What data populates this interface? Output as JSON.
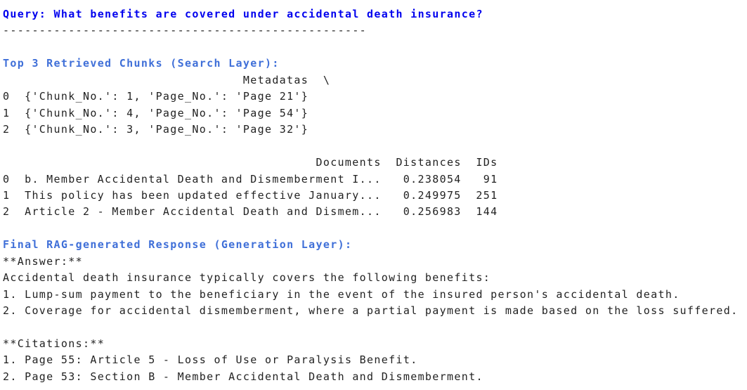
{
  "query": "Query: What benefits are covered under accidental death insurance?",
  "separator": "--------------------------------------------------",
  "retrieved": {
    "title": "Top 3 Retrieved Chunks (Search Layer):",
    "table1": {
      "header": "Metadatas  \\",
      "rows": [
        [
          "0",
          "{'Chunk_No.': 1, 'Page_No.': 'Page 21'}"
        ],
        [
          "1",
          "{'Chunk_No.': 4, 'Page_No.': 'Page 54'}"
        ],
        [
          "2",
          "{'Chunk_No.': 3, 'Page_No.': 'Page 32'}"
        ]
      ]
    },
    "table2": {
      "headers": [
        "Documents",
        "Distances",
        "IDs"
      ],
      "rows": [
        [
          "0",
          "b. Member Accidental Death and Dismemberment I...",
          "0.238054",
          "91"
        ],
        [
          "1",
          "This policy has been updated effective January...",
          "0.249975",
          "251"
        ],
        [
          "2",
          "Article 2 - Member Accidental Death and Dismem...",
          "0.256983",
          "144"
        ]
      ]
    }
  },
  "response": {
    "title": "Final RAG-generated Response (Generation Layer):",
    "answer": {
      "heading": "**Answer:**",
      "lines": [
        "Accidental death insurance typically covers the following benefits:",
        "1. Lump-sum payment to the beneficiary in the event of the insured person's accidental death.",
        "2. Coverage for accidental dismemberment, where a partial payment is made based on the loss suffered."
      ]
    },
    "citations": {
      "heading": "**Citations:**",
      "lines": [
        "1. Page 55: Article 5 - Loss of Use or Paralysis Benefit.",
        "2. Page 53: Section B - Member Accidental Death and Dismemberment."
      ]
    }
  }
}
